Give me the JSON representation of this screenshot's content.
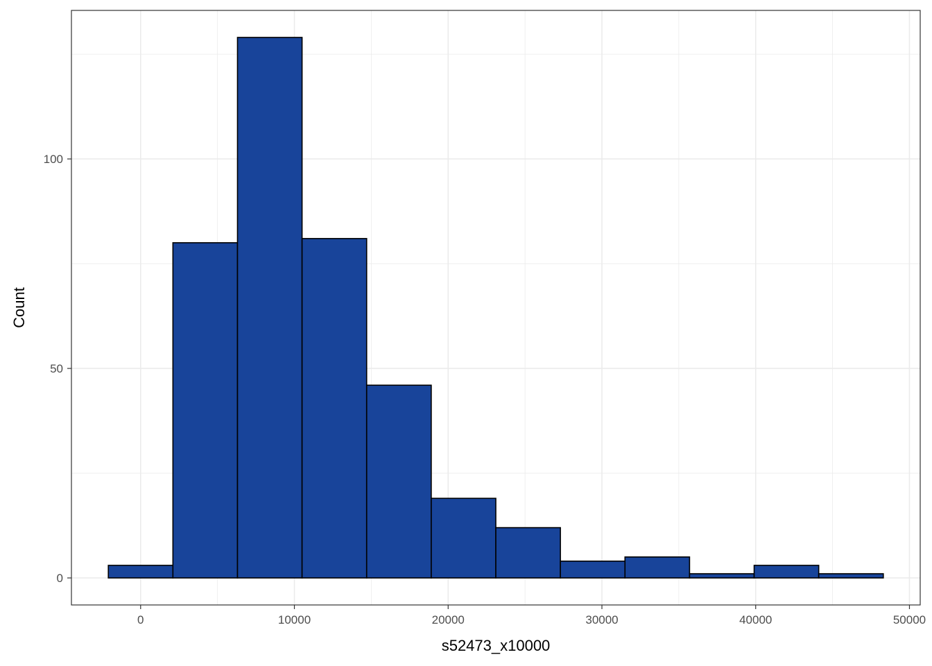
{
  "chart_data": {
    "type": "bar",
    "subtype": "histogram",
    "title": "",
    "xlabel": "s52473_x10000",
    "ylabel": "Count",
    "bin_width": 4200,
    "bins": [
      {
        "x0": -2100,
        "x1": 2100,
        "count": 3
      },
      {
        "x0": 2100,
        "x1": 6300,
        "count": 80
      },
      {
        "x0": 6300,
        "x1": 10500,
        "count": 129
      },
      {
        "x0": 10500,
        "x1": 14700,
        "count": 81
      },
      {
        "x0": 14700,
        "x1": 18900,
        "count": 46
      },
      {
        "x0": 18900,
        "x1": 23100,
        "count": 19
      },
      {
        "x0": 23100,
        "x1": 27300,
        "count": 12
      },
      {
        "x0": 27300,
        "x1": 31500,
        "count": 4
      },
      {
        "x0": 31500,
        "x1": 35700,
        "count": 5
      },
      {
        "x0": 35700,
        "x1": 39900,
        "count": 1
      },
      {
        "x0": 39900,
        "x1": 44100,
        "count": 3
      },
      {
        "x0": 44100,
        "x1": 48300,
        "count": 1
      }
    ],
    "xlim": [
      -4500,
      50700
    ],
    "ylim": [
      -6.45,
      135.45
    ],
    "x_ticks": [
      0,
      10000,
      20000,
      30000,
      40000,
      50000
    ],
    "x_tick_labels": [
      "0",
      "10000",
      "20000",
      "30000",
      "40000",
      "50000"
    ],
    "y_ticks": [
      0,
      50,
      100
    ],
    "y_tick_labels": [
      "0",
      "50",
      "100"
    ],
    "x_minor_gridlines": [
      -5000,
      5000,
      15000,
      25000,
      35000,
      45000
    ],
    "y_minor_gridlines": [
      25,
      75,
      125
    ],
    "grid": true,
    "legend": "none",
    "bar_fill": "#18449a",
    "bar_stroke": "#000000",
    "grid_color": "#ebebeb",
    "panel_border": "#333333",
    "background": "#ffffff"
  }
}
